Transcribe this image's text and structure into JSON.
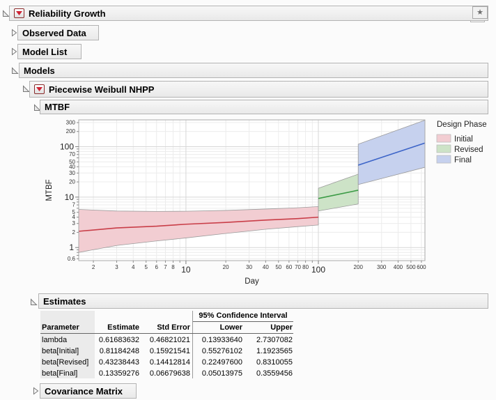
{
  "app": {
    "title": "Reliability Growth",
    "icons": {
      "star": "★"
    }
  },
  "outline": {
    "reliability_growth": "Reliability Growth",
    "observed_data": "Observed Data",
    "model_list": "Model List",
    "models": "Models",
    "piecewise_weibull_nhpp": "Piecewise Weibull NHPP",
    "mtbf": "MTBF",
    "estimates": "Estimates",
    "covariance_matrix": "Covariance Matrix"
  },
  "estimates_table": {
    "ci_header": "95% Confidence Interval",
    "columns": [
      "Parameter",
      "Estimate",
      "Std Error",
      "Lower",
      "Upper"
    ],
    "rows": [
      {
        "parameter": "lambda",
        "estimate": "0.61683632",
        "std_error": "0.46821021",
        "lower": "0.13933640",
        "upper": "2.7307082"
      },
      {
        "parameter": "beta[Initial]",
        "estimate": "0.81184248",
        "std_error": "0.15921541",
        "lower": "0.55276102",
        "upper": "1.1923565"
      },
      {
        "parameter": "beta[Revised]",
        "estimate": "0.43238443",
        "std_error": "0.14412814",
        "lower": "0.22497600",
        "upper": "0.8310055"
      },
      {
        "parameter": "beta[Final]",
        "estimate": "0.13359276",
        "std_error": "0.06679638",
        "lower": "0.05013975",
        "upper": "0.3559456"
      }
    ]
  },
  "chart_data": {
    "type": "area",
    "title": "",
    "xlabel": "Day",
    "ylabel": "MTBF",
    "xscale": "log",
    "yscale": "log",
    "xlim": [
      1.55,
      638
    ],
    "ylim": [
      0.55,
      340
    ],
    "grid": true,
    "legend_title": "Design Phase",
    "legend_position": "right",
    "x_ticks": {
      "major": [
        10,
        100
      ],
      "minor": [
        2,
        3,
        4,
        5,
        6,
        7,
        8,
        20,
        30,
        40,
        50,
        60,
        70,
        80,
        200,
        300,
        400,
        500,
        600
      ],
      "unlabeled": [
        9,
        90
      ]
    },
    "y_ticks": {
      "major": [
        1,
        10,
        100
      ],
      "minor": [
        0.6,
        2,
        3,
        4,
        5,
        7,
        20,
        30,
        40,
        50,
        70,
        200,
        300
      ],
      "unlabeled": [
        0.7,
        0.8,
        0.9,
        6,
        8,
        9,
        60,
        80,
        90
      ]
    },
    "series": [
      {
        "name": "Initial",
        "line_color": "#c93e48",
        "fill_color": "#f2cdd2",
        "x": [
          1.55,
          3,
          6,
          10,
          20,
          40,
          70,
          100
        ],
        "y": [
          2.1,
          2.45,
          2.65,
          2.9,
          3.15,
          3.5,
          3.75,
          4.0
        ],
        "upper": [
          5.7,
          5.3,
          5.2,
          5.25,
          5.45,
          5.8,
          6.15,
          6.5
        ],
        "lower": [
          0.8,
          1.1,
          1.35,
          1.55,
          1.9,
          2.3,
          2.6,
          2.8
        ]
      },
      {
        "name": "Revised",
        "line_color": "#3c9b46",
        "fill_color": "#cde3c7",
        "x": [
          100,
          200
        ],
        "y": [
          9.4,
          13.7
        ],
        "upper": [
          15,
          28.5
        ],
        "lower": [
          5.3,
          7.3
        ]
      },
      {
        "name": "Final",
        "line_color": "#3c64c8",
        "fill_color": "#c6d1ee",
        "x": [
          200,
          638
        ],
        "y": [
          43,
          118
        ],
        "upper": [
          112,
          335
        ],
        "lower": [
          17.7,
          39
        ]
      }
    ]
  }
}
